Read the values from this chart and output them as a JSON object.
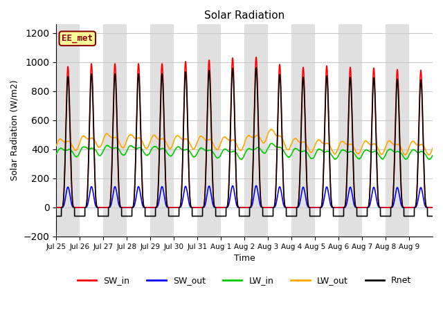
{
  "title": "Solar Radiation",
  "ylabel": "Solar Radiation (W/m2)",
  "xlabel": "Time",
  "ylim": [
    -200,
    1260
  ],
  "yticks": [
    -200,
    0,
    200,
    400,
    600,
    800,
    1000,
    1200
  ],
  "annotation_text": "EE_met",
  "annotation_color": "#8B0000",
  "annotation_bg": "#FFFF99",
  "series": {
    "SW_in": {
      "color": "#FF0000",
      "lw": 1.2
    },
    "SW_out": {
      "color": "#0000FF",
      "lw": 1.2
    },
    "LW_in": {
      "color": "#00CC00",
      "lw": 1.2
    },
    "LW_out": {
      "color": "#FFA500",
      "lw": 1.2
    },
    "Rnet": {
      "color": "#000000",
      "lw": 1.2
    }
  },
  "n_days": 16,
  "pts_per_day": 288,
  "background_color": "#ffffff",
  "grid_color": "#c8c8c8",
  "band_color": "#e0e0e0",
  "tick_labels": [
    "Jul 25",
    "Jul 26",
    "Jul 27",
    "Jul 28",
    "Jul 29",
    "Jul 30",
    "Jul 31",
    "Aug 1",
    "Aug 2",
    "Aug 3",
    "Aug 4",
    "Aug 5",
    "Aug 6",
    "Aug 7",
    "Aug 8",
    "Aug 9"
  ]
}
